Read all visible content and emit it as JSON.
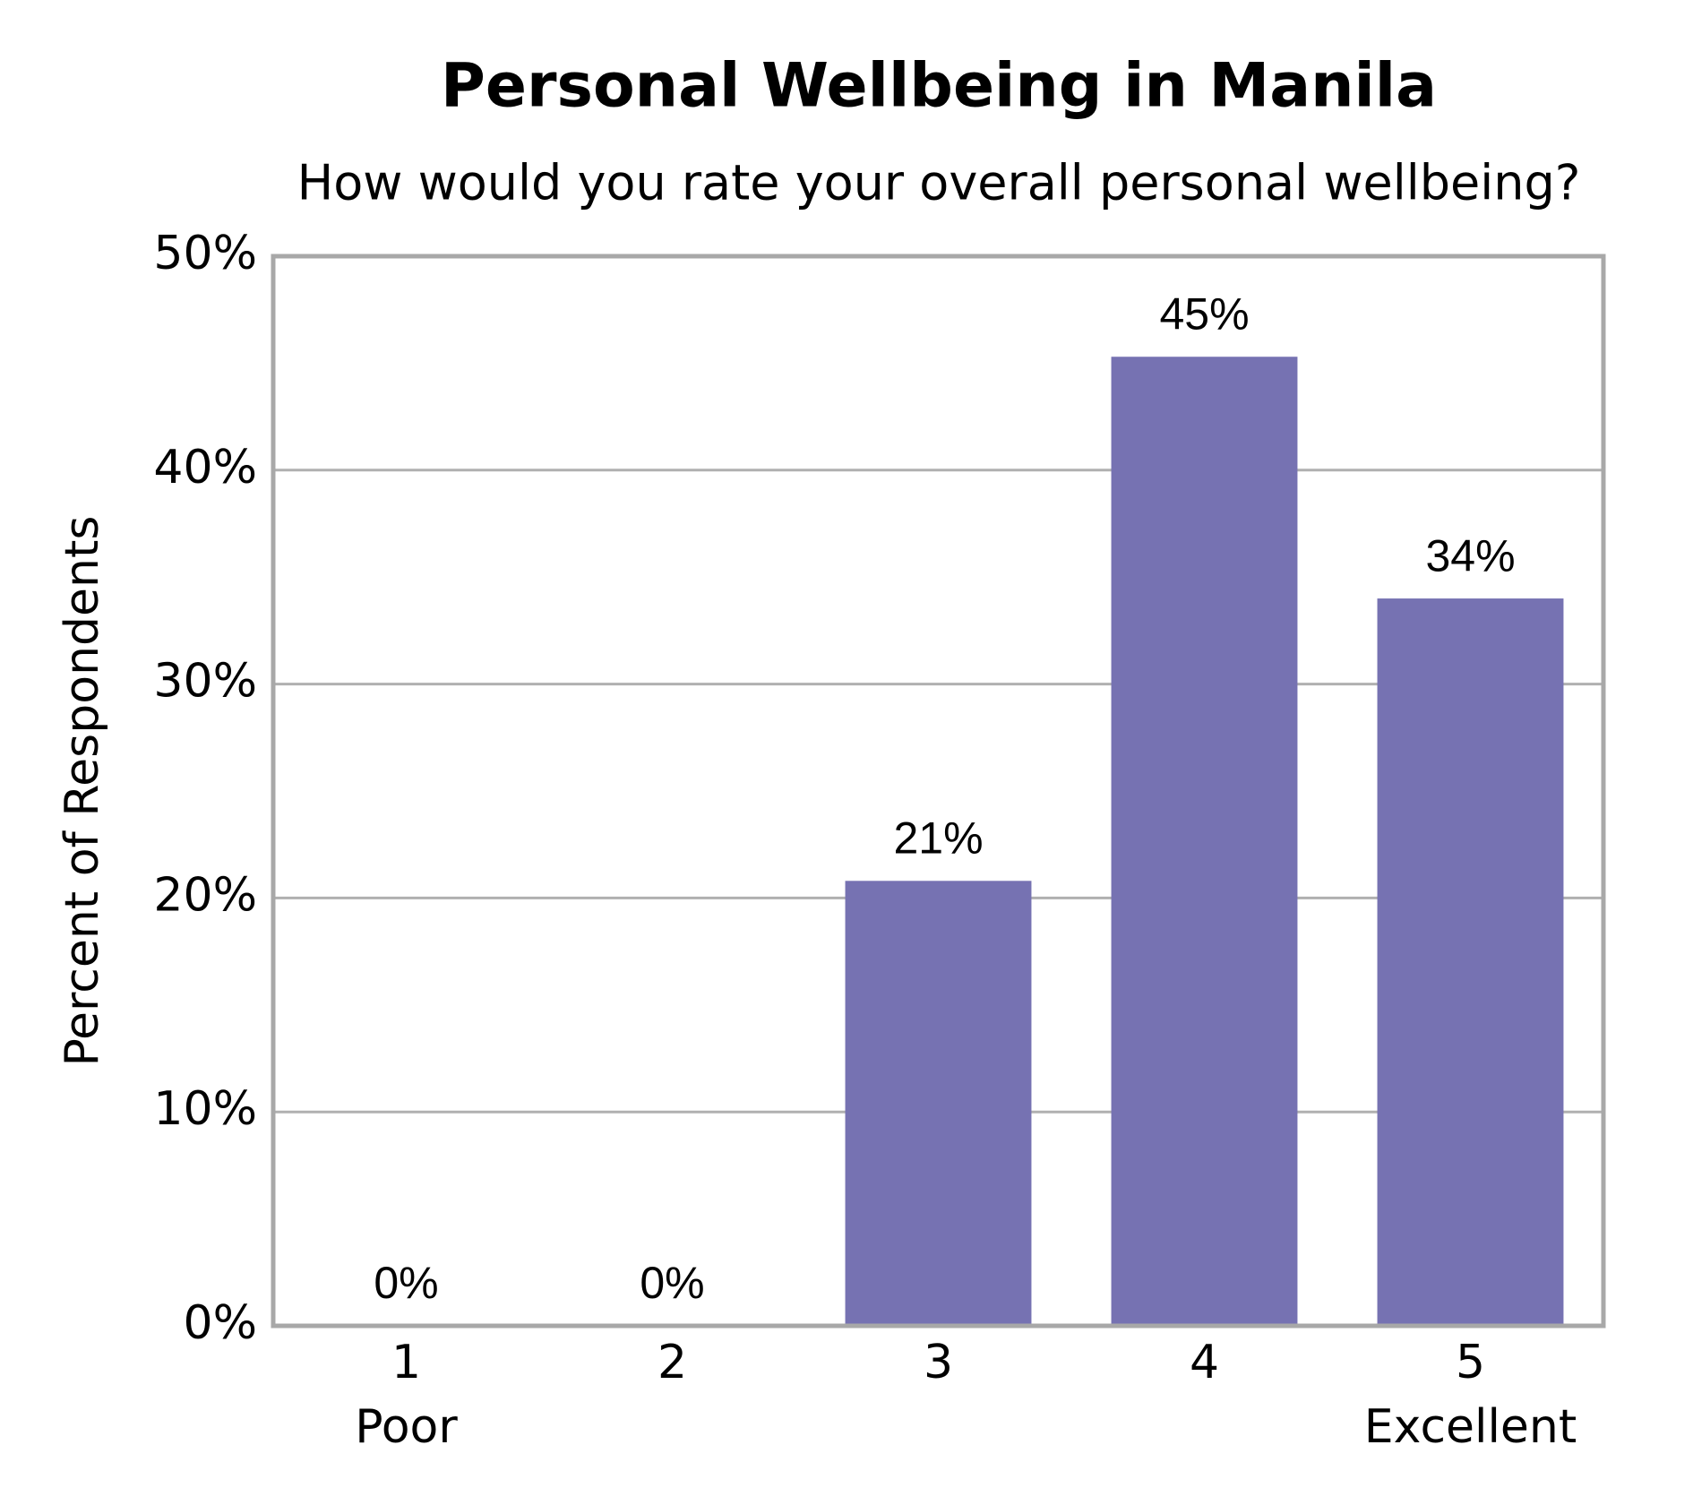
{
  "chart_data": {
    "type": "bar",
    "title": "Personal Wellbeing in Manila",
    "subtitle": "How would you rate your overall personal wellbeing?",
    "y_label": "Percent of Respondents",
    "categories": [
      [
        "1",
        "Poor"
      ],
      [
        "2"
      ],
      [
        "3"
      ],
      [
        "4"
      ],
      [
        "5",
        "Excellent"
      ]
    ],
    "values": [
      0,
      0,
      20.8,
      45.3,
      34
    ],
    "value_labels": [
      "0%",
      "0%",
      "21%",
      "45%",
      "34%"
    ],
    "color": "#7672b2",
    "ylim": [
      0,
      50
    ],
    "yticks": [
      {
        "value": 0,
        "label": "0%"
      },
      {
        "value": 10,
        "label": "10%"
      },
      {
        "value": 20,
        "label": "20%"
      },
      {
        "value": 30,
        "label": "30%"
      },
      {
        "value": 40,
        "label": "40%"
      },
      {
        "value": 50,
        "label": "50%"
      }
    ],
    "grid": true
  }
}
